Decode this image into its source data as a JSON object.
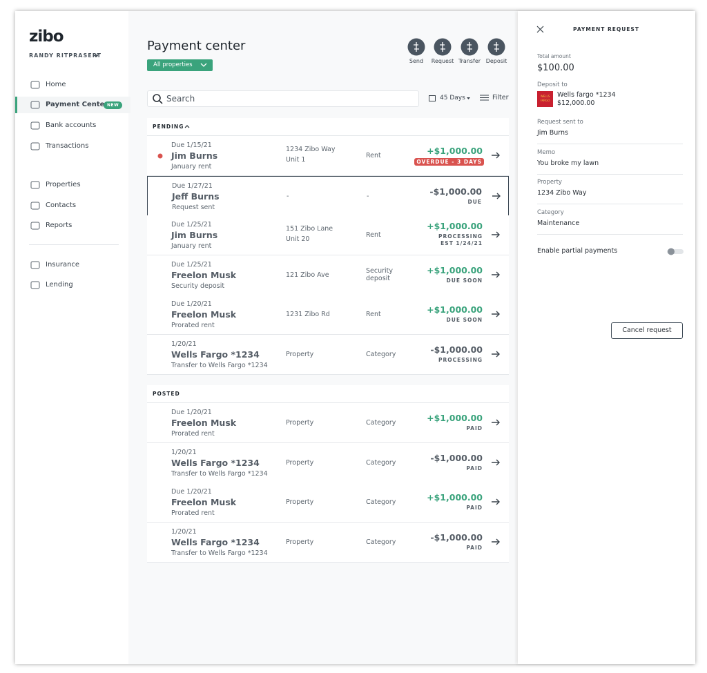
{
  "sidebar": {
    "logo": "zibo",
    "user": "RANDY RITPRASERT",
    "nav": [
      [
        {
          "label": "Home"
        },
        {
          "label": "Payment Center",
          "badge": "NEW",
          "active": true
        },
        {
          "label": "Bank accounts"
        },
        {
          "label": "Transactions"
        }
      ],
      [
        {
          "label": "Properties"
        },
        {
          "label": "Contacts"
        },
        {
          "label": "Reports"
        }
      ],
      [
        {
          "label": "Insurance"
        },
        {
          "label": "Lending"
        }
      ]
    ]
  },
  "header": {
    "title": "Payment center",
    "filter": "All properties",
    "actions": [
      "Send",
      "Request",
      "Transfer",
      "Deposit"
    ]
  },
  "toolbar": {
    "search": "Search",
    "days": "45 Days",
    "filter": "Filter"
  },
  "sections": [
    {
      "title": "PENDING",
      "rows": [
        {
          "date": "Due 1/15/21",
          "name": "Jim Burns",
          "desc": "January rent",
          "property": [
            "1234 Zibo Way",
            "Unit 1"
          ],
          "category": "Rent",
          "amount": "+$1,000.00",
          "status": [
            "OVERDUE - 3 DAYS"
          ],
          "overdue": true
        },
        {
          "date": "Due 1/27/21",
          "name": "Jeff Burns",
          "desc": "Request sent",
          "property": [
            "-"
          ],
          "category": "-",
          "amount": "-$1,000.00",
          "status": [
            "DUE"
          ],
          "selected": true
        },
        {
          "date": "Due 1/25/21",
          "name": "Jim Burns",
          "desc": "January rent",
          "property": [
            "151 Zibo Lane",
            "Unit 20"
          ],
          "category": "Rent",
          "amount": "+$1,000.00",
          "status": [
            "PROCESSING",
            "EST 1/24/21"
          ]
        },
        {
          "date": "Due 1/25/21",
          "name": "Freelon Musk",
          "desc": "Security deposit",
          "property": [
            "121 Zibo Ave"
          ],
          "category": "Security deposit",
          "amount": "+$1,000.00",
          "status": [
            "DUE SOON"
          ]
        },
        {
          "date": "Due 1/20/21",
          "name": "Freelon Musk",
          "desc": "Prorated rent",
          "property": [
            "1231 Zibo Rd"
          ],
          "category": "Rent",
          "amount": "+$1,000.00",
          "status": [
            "DUE SOON"
          ]
        },
        {
          "date": "1/20/21",
          "name": "Wells Fargo *1234",
          "desc": "Transfer to Wells Fargo *1234",
          "property": [
            "Property"
          ],
          "category": "Category",
          "amount": "-$1,000.00",
          "status": [
            "PROCESSING"
          ]
        }
      ]
    },
    {
      "title": "POSTED",
      "rows": [
        {
          "date": "Due 1/20/21",
          "name": "Freelon Musk",
          "desc": "Prorated rent",
          "property": [
            "Property"
          ],
          "category": "Category",
          "amount": "+$1,000.00",
          "status": [
            "PAID"
          ]
        },
        {
          "date": "1/20/21",
          "name": "Wells Fargo *1234",
          "desc": "Transfer to Wells Fargo *1234",
          "property": [
            "Property"
          ],
          "category": "Category",
          "amount": "-$1,000.00",
          "status": [
            "PAID"
          ]
        },
        {
          "date": "Due 1/20/21",
          "name": "Freelon Musk",
          "desc": "Prorated rent",
          "property": [
            "Property"
          ],
          "category": "Category",
          "amount": "+$1,000.00",
          "status": [
            "PAID"
          ]
        },
        {
          "date": "1/20/21",
          "name": "Wells Fargo *1234",
          "desc": "Transfer to Wells Fargo *1234",
          "property": [
            "Property"
          ],
          "category": "Category",
          "amount": "-$1,000.00",
          "status": [
            "PAID"
          ]
        }
      ]
    }
  ],
  "panel": {
    "title": "PAYMENT REQUEST",
    "total_label": "Total amount",
    "total": "$100.00",
    "deposit_label": "Deposit to",
    "bank_logo": "WELLS FARGO",
    "bank": "Wells fargo *1234",
    "balance": "$12,000.00",
    "fields": [
      {
        "label": "Request sent to",
        "value": "Jim Burns"
      },
      {
        "label": "Memo",
        "value": "You broke my lawn"
      },
      {
        "label": "Property",
        "value": "1234 Zibo Way"
      },
      {
        "label": "Category",
        "value": "Maintenance"
      }
    ],
    "toggle": "Enable partial payments",
    "button": "Cancel request"
  }
}
